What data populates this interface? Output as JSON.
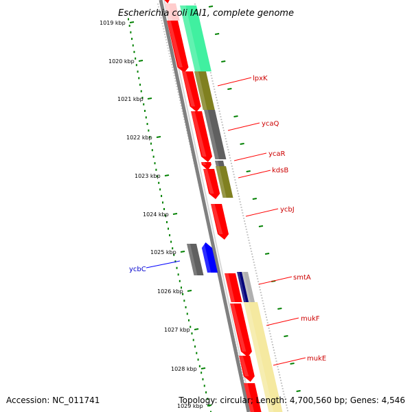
{
  "title": "Escherichia coli IAI1, complete genome",
  "footer": {
    "accession": "Accession: NC_011741",
    "summary": "Topology: circular; Length: 4,700,560 bp; Genes: 4,546"
  },
  "colors": {
    "forward_gene": "#ff0000",
    "reverse_gene": "#ff0000",
    "blue_gene": "#0000ff",
    "dark_navy": "#00007a",
    "grey": "#606060",
    "olive": "#808020",
    "mint": "#40f0a0",
    "pale_yellow": "#f5e9a0",
    "pink": "#ffcccc",
    "backbone": "#808080",
    "tick": "#008000",
    "label_red": "#cc0000",
    "label_blue": "#0000cc"
  },
  "scale": {
    "labels": [
      "1019 kbp",
      "1020 kbp",
      "1021 kbp",
      "1022 kbp",
      "1023 kbp",
      "1024 kbp",
      "1025 kbp",
      "1026 kbp",
      "1027 kbp",
      "1028 kbp",
      "1029 kbp"
    ]
  },
  "genes": [
    {
      "name": "lpxK",
      "color": "label_red"
    },
    {
      "name": "ycaQ",
      "color": "label_red"
    },
    {
      "name": "ycaR",
      "color": "label_red"
    },
    {
      "name": "kdsB",
      "color": "label_red"
    },
    {
      "name": "ycbJ",
      "color": "label_red"
    },
    {
      "name": "smtA",
      "color": "label_red"
    },
    {
      "name": "mukF",
      "color": "label_red"
    },
    {
      "name": "mukE",
      "color": "label_red"
    },
    {
      "name": "ycbC",
      "color": "label_blue"
    }
  ]
}
